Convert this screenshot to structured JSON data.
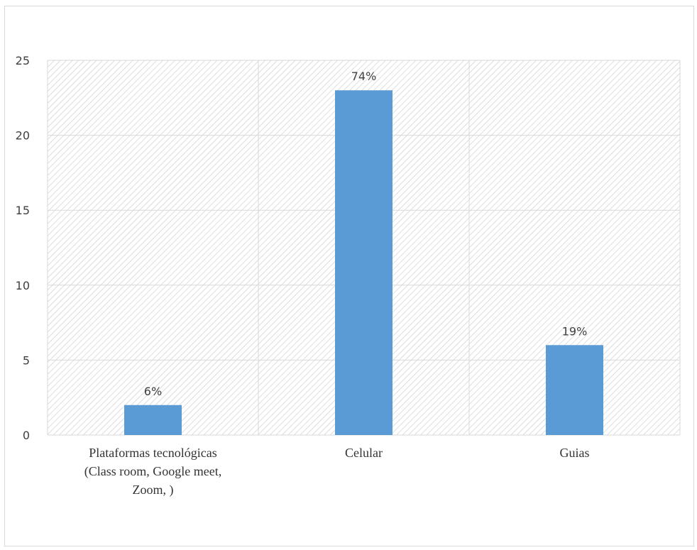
{
  "chart_data": {
    "type": "bar",
    "title": "",
    "xlabel": "",
    "ylabel": "",
    "categories": [
      [
        "Plataformas tecnológicas",
        "(Class room, Google meet,",
        "Zoom, )"
      ],
      [
        "Celular"
      ],
      [
        "Guias"
      ]
    ],
    "values": [
      2,
      23,
      6
    ],
    "data_labels": [
      "6%",
      "74%",
      "19%"
    ],
    "ylim": [
      0,
      25
    ],
    "yticks": [
      0,
      5,
      10,
      15,
      20,
      25
    ],
    "grid": true,
    "legend": "none",
    "colors": {
      "bar": "#5b9bd5",
      "grid": "#d9d9d9",
      "hatch": "#cfcfcf",
      "text": "#404040"
    }
  }
}
